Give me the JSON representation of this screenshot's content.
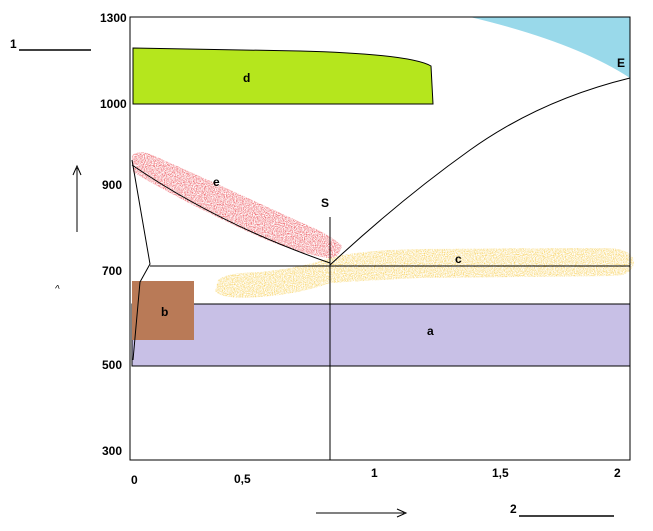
{
  "diagram": {
    "y_ticks": [
      "1300",
      "1000",
      "900",
      "700",
      "500",
      "300"
    ],
    "x_ticks": [
      "0",
      "0,5",
      "1",
      "1,5",
      "2"
    ],
    "blank_label_1": "1",
    "blank_label_2": "2",
    "point_s": "S",
    "point_e": "E",
    "regions": {
      "a": "a",
      "b": "b",
      "c": "c",
      "d": "d",
      "e": "e"
    },
    "stray_mark": "^",
    "colors": {
      "a": "#c8c0e6",
      "b": "#b97a57",
      "c": "#f5c32c",
      "d": "#b5e61d",
      "e": "#e6202a",
      "corner": "#99d9ea"
    }
  }
}
